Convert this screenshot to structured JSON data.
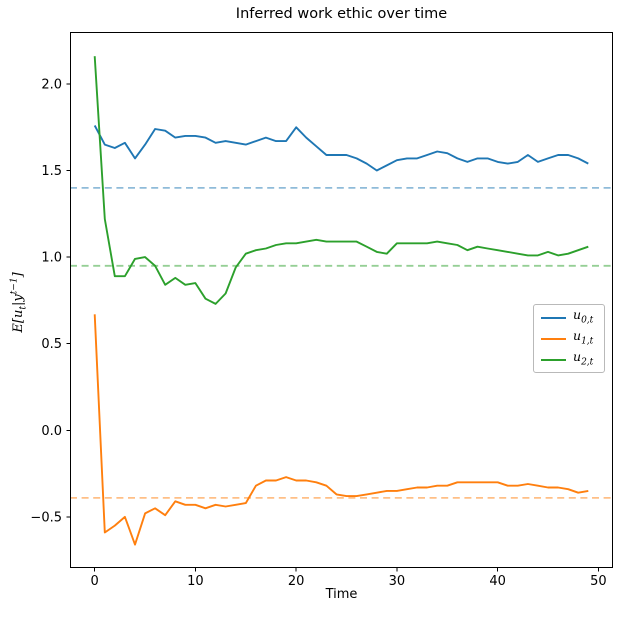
{
  "chart": {
    "title": "Inferred work ethic over time",
    "xlabel": "Time",
    "ylabel_text": "E[u_t | y^(t-1)]",
    "ylabel_parts": {
      "pre": "E[u",
      "sub": "t",
      "mid": "|y",
      "sup": "t−1",
      "post": "]"
    }
  },
  "chart_data": {
    "type": "line",
    "title": "Inferred work ethic over time",
    "xlabel": "Time",
    "ylabel": "E[u_t | y^(t-1)]",
    "xlim": [
      -2.45,
      51.45
    ],
    "ylim": [
      -0.795,
      2.3
    ],
    "grid": false,
    "legend_position": "center right",
    "xticks": {
      "values": [
        0,
        10,
        20,
        30,
        40,
        50
      ],
      "labels": [
        "0",
        "10",
        "20",
        "30",
        "40",
        "50"
      ]
    },
    "yticks": {
      "values": [
        -0.5,
        0.0,
        0.5,
        1.0,
        1.5,
        2.0
      ],
      "labels": [
        "−0.5",
        "0.0",
        "0.5",
        "1.0",
        "1.5",
        "2.0"
      ]
    },
    "x": [
      0,
      1,
      2,
      3,
      4,
      5,
      6,
      7,
      8,
      9,
      10,
      11,
      12,
      13,
      14,
      15,
      16,
      17,
      18,
      19,
      20,
      21,
      22,
      23,
      24,
      25,
      26,
      27,
      28,
      29,
      30,
      31,
      32,
      33,
      34,
      35,
      36,
      37,
      38,
      39,
      40,
      41,
      42,
      43,
      44,
      45,
      46,
      47,
      48,
      49
    ],
    "series": [
      {
        "id": "u0",
        "name": "u_{0,t}",
        "color": "#1f77b4",
        "values": [
          1.76,
          1.65,
          1.63,
          1.66,
          1.57,
          1.65,
          1.74,
          1.73,
          1.69,
          1.7,
          1.7,
          1.69,
          1.66,
          1.67,
          1.66,
          1.65,
          1.67,
          1.69,
          1.67,
          1.67,
          1.75,
          1.69,
          1.64,
          1.59,
          1.59,
          1.59,
          1.57,
          1.54,
          1.5,
          1.53,
          1.56,
          1.57,
          1.57,
          1.59,
          1.61,
          1.6,
          1.57,
          1.55,
          1.57,
          1.57,
          1.55,
          1.54,
          1.55,
          1.59,
          1.55,
          1.57,
          1.59,
          1.59,
          1.57,
          1.54
        ]
      },
      {
        "id": "u1",
        "name": "u_{1,t}",
        "color": "#ff7f0e",
        "values": [
          0.67,
          -0.59,
          -0.55,
          -0.5,
          -0.66,
          -0.48,
          -0.45,
          -0.49,
          -0.41,
          -0.43,
          -0.43,
          -0.45,
          -0.43,
          -0.44,
          -0.43,
          -0.42,
          -0.32,
          -0.29,
          -0.29,
          -0.27,
          -0.29,
          -0.29,
          -0.3,
          -0.32,
          -0.37,
          -0.38,
          -0.38,
          -0.37,
          -0.36,
          -0.35,
          -0.35,
          -0.34,
          -0.33,
          -0.33,
          -0.32,
          -0.32,
          -0.3,
          -0.3,
          -0.3,
          -0.3,
          -0.3,
          -0.32,
          -0.32,
          -0.31,
          -0.32,
          -0.33,
          -0.33,
          -0.34,
          -0.36,
          -0.35
        ]
      },
      {
        "id": "u2",
        "name": "u_{2,t}",
        "color": "#2ca02c",
        "values": [
          2.16,
          1.22,
          0.89,
          0.89,
          0.99,
          1.0,
          0.95,
          0.84,
          0.88,
          0.84,
          0.85,
          0.76,
          0.73,
          0.79,
          0.94,
          1.02,
          1.04,
          1.05,
          1.07,
          1.08,
          1.08,
          1.09,
          1.1,
          1.09,
          1.09,
          1.09,
          1.09,
          1.06,
          1.03,
          1.02,
          1.08,
          1.08,
          1.08,
          1.08,
          1.09,
          1.08,
          1.07,
          1.04,
          1.06,
          1.05,
          1.04,
          1.03,
          1.02,
          1.01,
          1.01,
          1.03,
          1.01,
          1.02,
          1.04,
          1.06
        ]
      }
    ],
    "baselines": [
      {
        "id": "u0",
        "value": 1.4,
        "color": "#1f77b4",
        "style": "dashed"
      },
      {
        "id": "u1",
        "value": -0.39,
        "color": "#ff7f0e",
        "style": "dashed"
      },
      {
        "id": "u2",
        "value": 0.95,
        "color": "#2ca02c",
        "style": "dashed"
      }
    ],
    "legend": {
      "entries": [
        {
          "var": "u",
          "sub": "0,t"
        },
        {
          "var": "u",
          "sub": "1,t"
        },
        {
          "var": "u",
          "sub": "2,t"
        }
      ]
    }
  }
}
